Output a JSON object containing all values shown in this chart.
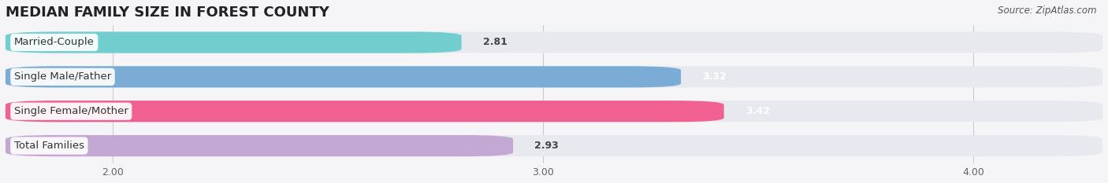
{
  "title": "MEDIAN FAMILY SIZE IN FOREST COUNTY",
  "source": "Source: ZipAtlas.com",
  "categories": [
    "Married-Couple",
    "Single Male/Father",
    "Single Female/Mother",
    "Total Families"
  ],
  "values": [
    2.81,
    3.32,
    3.42,
    2.93
  ],
  "bar_colors": [
    "#72cece",
    "#7aacd6",
    "#f06090",
    "#c4a8d4"
  ],
  "value_colors": [
    "#444444",
    "#ffffff",
    "#ffffff",
    "#444444"
  ],
  "xlim_left": 1.75,
  "xlim_right": 4.3,
  "xticks": [
    2.0,
    3.0,
    4.0
  ],
  "xtick_labels": [
    "2.00",
    "3.00",
    "4.00"
  ],
  "background_color": "#f5f5f8",
  "bar_bg_color": "#e8e8ef",
  "label_fontsize": 9.5,
  "value_fontsize": 9,
  "title_fontsize": 13,
  "bar_height": 0.62,
  "bar_gap": 0.38,
  "rounding": 0.12
}
